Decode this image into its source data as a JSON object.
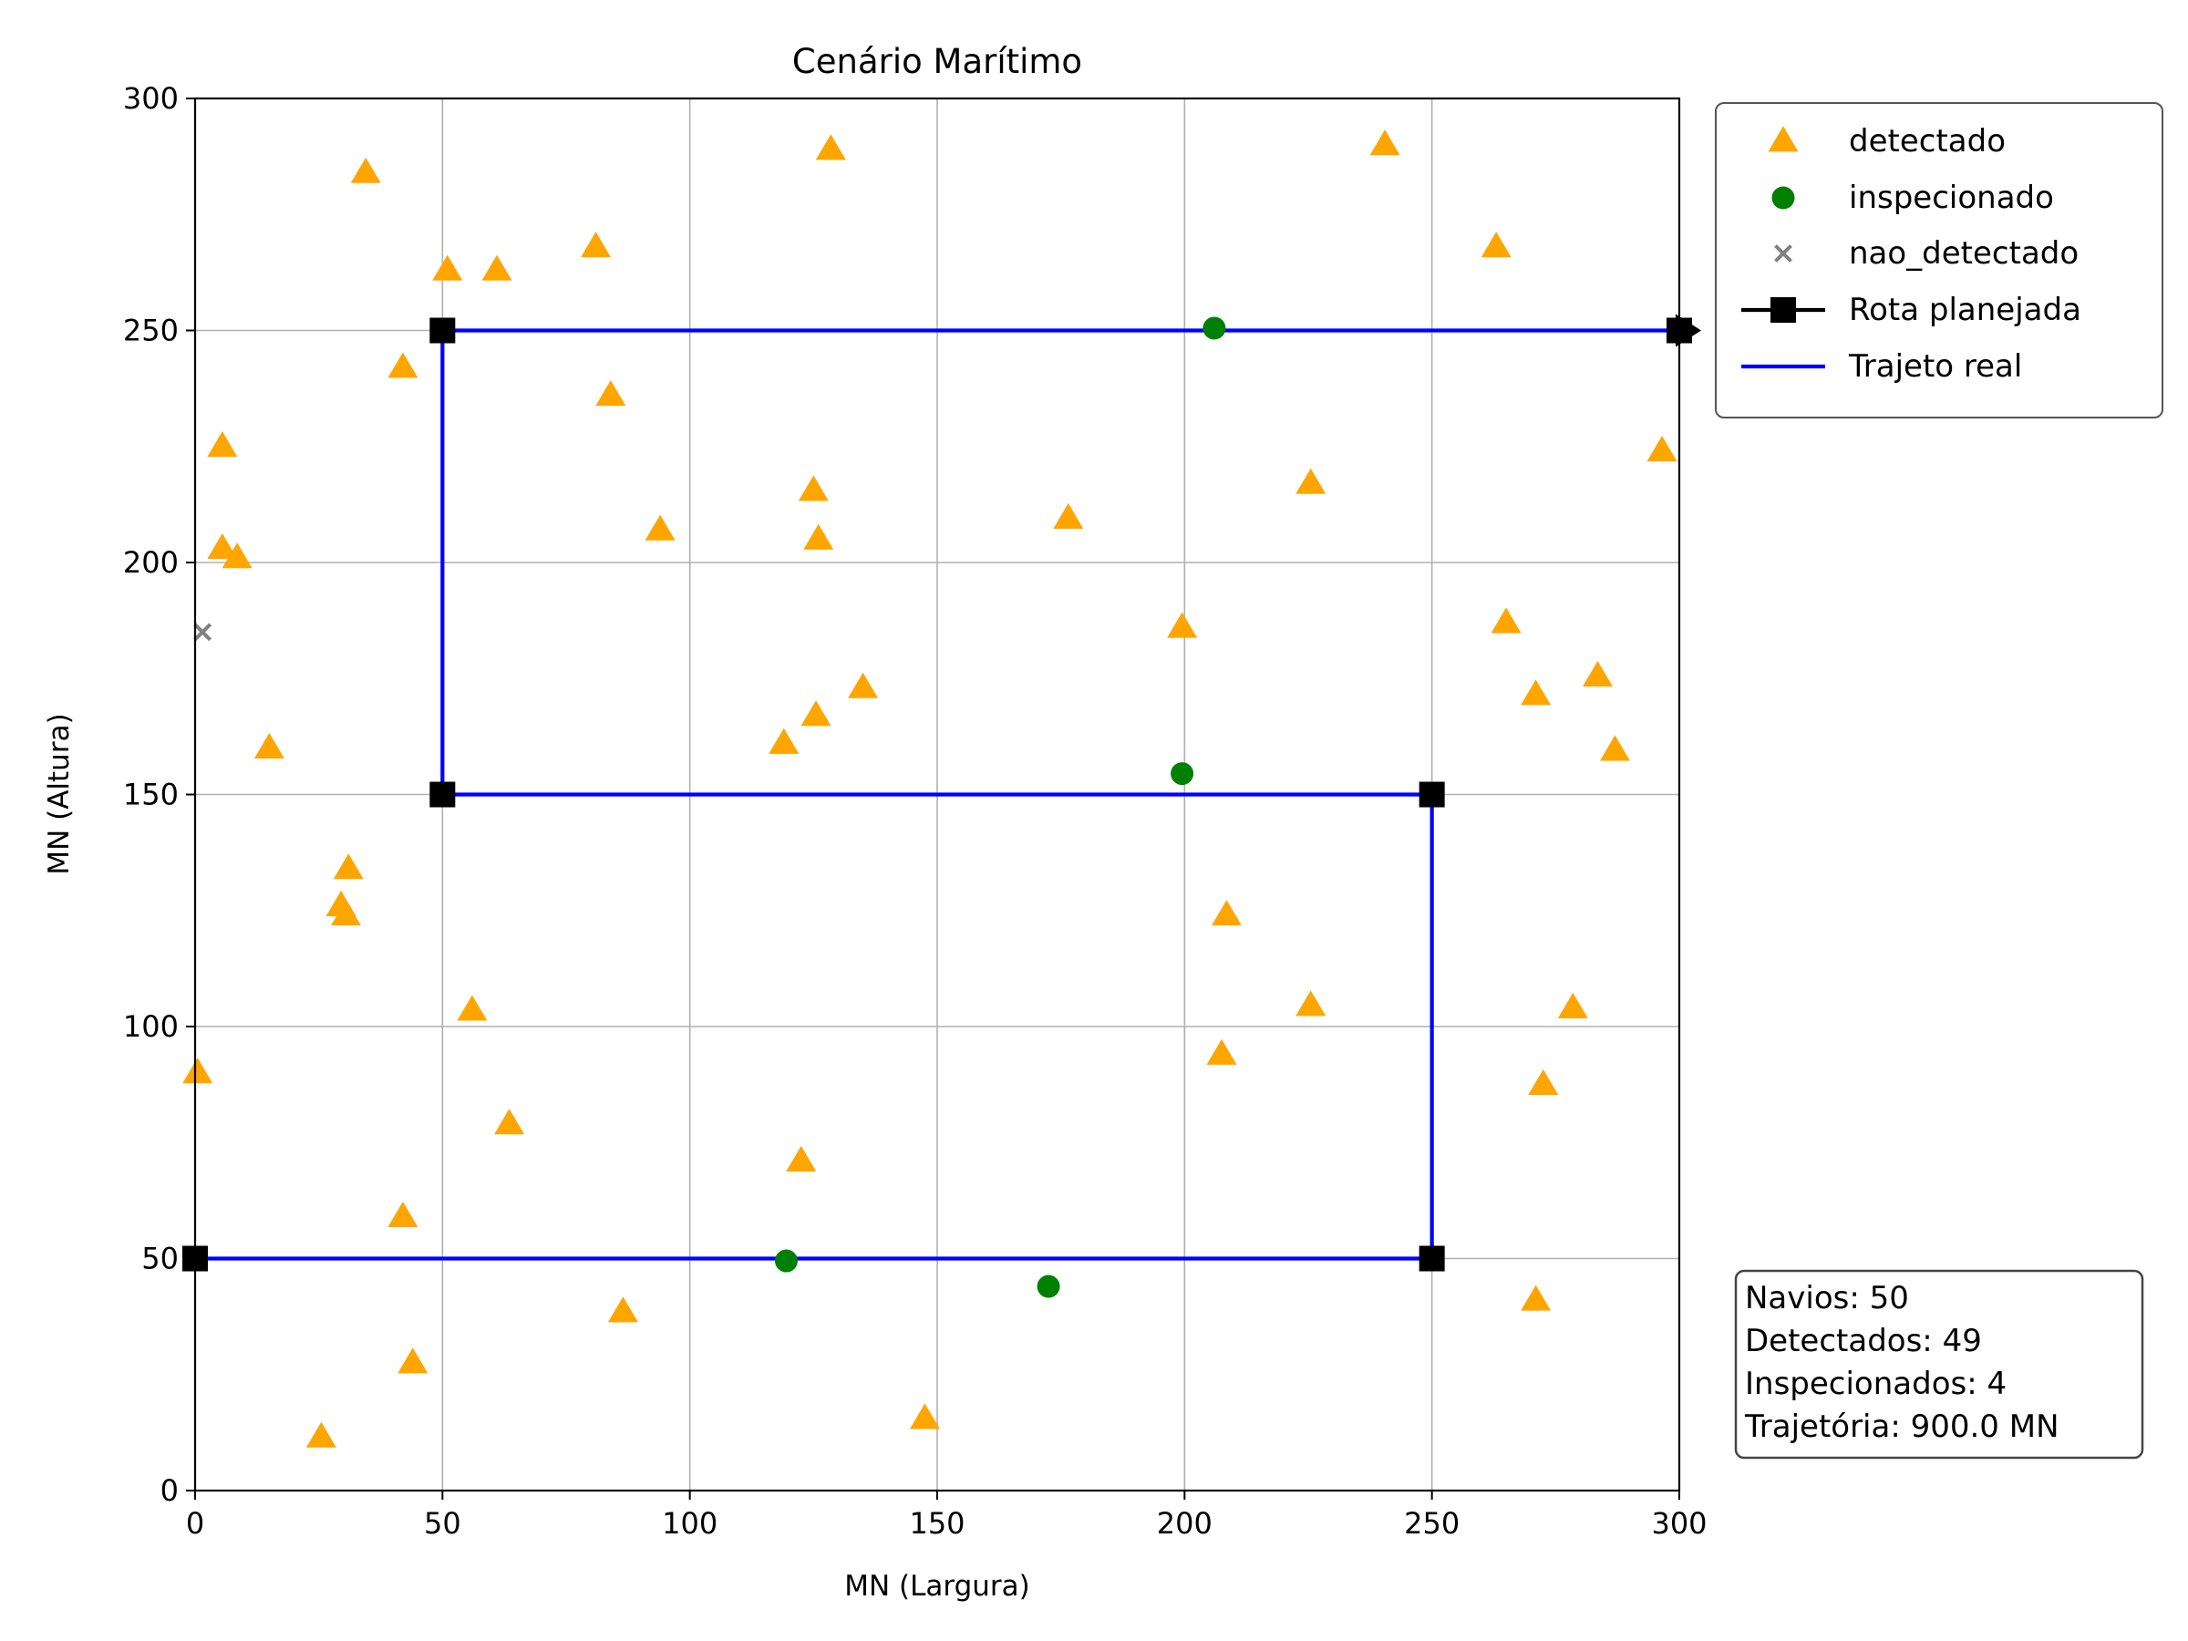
{
  "chart_data": {
    "type": "scatter",
    "title": "Cenário Marítimo",
    "xlabel": "MN (Largura)",
    "ylabel": "MN (Altura)",
    "xlim": [
      0,
      300
    ],
    "ylim": [
      0,
      300
    ],
    "xticks": [
      "0",
      "50",
      "100",
      "150",
      "200",
      "250",
      "300"
    ],
    "yticks": [
      "0",
      "50",
      "100",
      "150",
      "200",
      "250",
      "300"
    ],
    "grid": true,
    "legend_position": "outside upper right",
    "series": [
      {
        "name": "detectado",
        "marker": "triangle",
        "color": "#ffa500",
        "points": [
          [
            34.5,
            284
          ],
          [
            128.5,
            289
          ],
          [
            240.5,
            290
          ],
          [
            51,
            263
          ],
          [
            61,
            263
          ],
          [
            81,
            268
          ],
          [
            263,
            268
          ],
          [
            42,
            242
          ],
          [
            84,
            236
          ],
          [
            5.5,
            225
          ],
          [
            296.5,
            224
          ],
          [
            125,
            215.5
          ],
          [
            225.5,
            217
          ],
          [
            176.5,
            209.5
          ],
          [
            94,
            207
          ],
          [
            126,
            205
          ],
          [
            5.5,
            203
          ],
          [
            8.5,
            201
          ],
          [
            199.5,
            186
          ],
          [
            265,
            187
          ],
          [
            271,
            171.5
          ],
          [
            283.5,
            175.5
          ],
          [
            135,
            173
          ],
          [
            125.5,
            167
          ],
          [
            119,
            161
          ],
          [
            15,
            160
          ],
          [
            287,
            159.5
          ],
          [
            31,
            134
          ],
          [
            29.5,
            126
          ],
          [
            30.5,
            124
          ],
          [
            208.5,
            124
          ],
          [
            56,
            103.5
          ],
          [
            225.5,
            104.5
          ],
          [
            278.5,
            104
          ],
          [
            0.5,
            90
          ],
          [
            207.5,
            94
          ],
          [
            272.5,
            87.5
          ],
          [
            63.5,
            79
          ],
          [
            122.5,
            71
          ],
          [
            42,
            59
          ],
          [
            86.5,
            38.5
          ],
          [
            271,
            41
          ],
          [
            44,
            27.5
          ],
          [
            147.5,
            15.5
          ],
          [
            25.5,
            11.5
          ]
        ]
      },
      {
        "name": "inspecionado",
        "marker": "circle",
        "color": "#008000",
        "points": [
          [
            206,
            250.5
          ],
          [
            199.5,
            154.5
          ],
          [
            119.5,
            49.5
          ],
          [
            172.5,
            44
          ]
        ]
      },
      {
        "name": "nao_detectado",
        "marker": "x",
        "color": "#808080",
        "points": [
          [
            1.5,
            185
          ]
        ]
      },
      {
        "name": "Rota planejada",
        "marker": "square-line",
        "color": "#000000",
        "points": [
          [
            0,
            50
          ],
          [
            250,
            50
          ],
          [
            250,
            150
          ],
          [
            50,
            150
          ],
          [
            50,
            250
          ],
          [
            300,
            250
          ]
        ]
      },
      {
        "name": "Trajeto real",
        "marker": "line",
        "color": "#0000ff",
        "points": [
          [
            0,
            50
          ],
          [
            250,
            50
          ],
          [
            250,
            150
          ],
          [
            50,
            150
          ],
          [
            50,
            250
          ],
          [
            300,
            250
          ]
        ]
      }
    ],
    "stats": [
      "Navios: 50",
      "Detectados: 49",
      "Inspecionados: 4",
      "Trajetória: 900.0 MN"
    ]
  }
}
